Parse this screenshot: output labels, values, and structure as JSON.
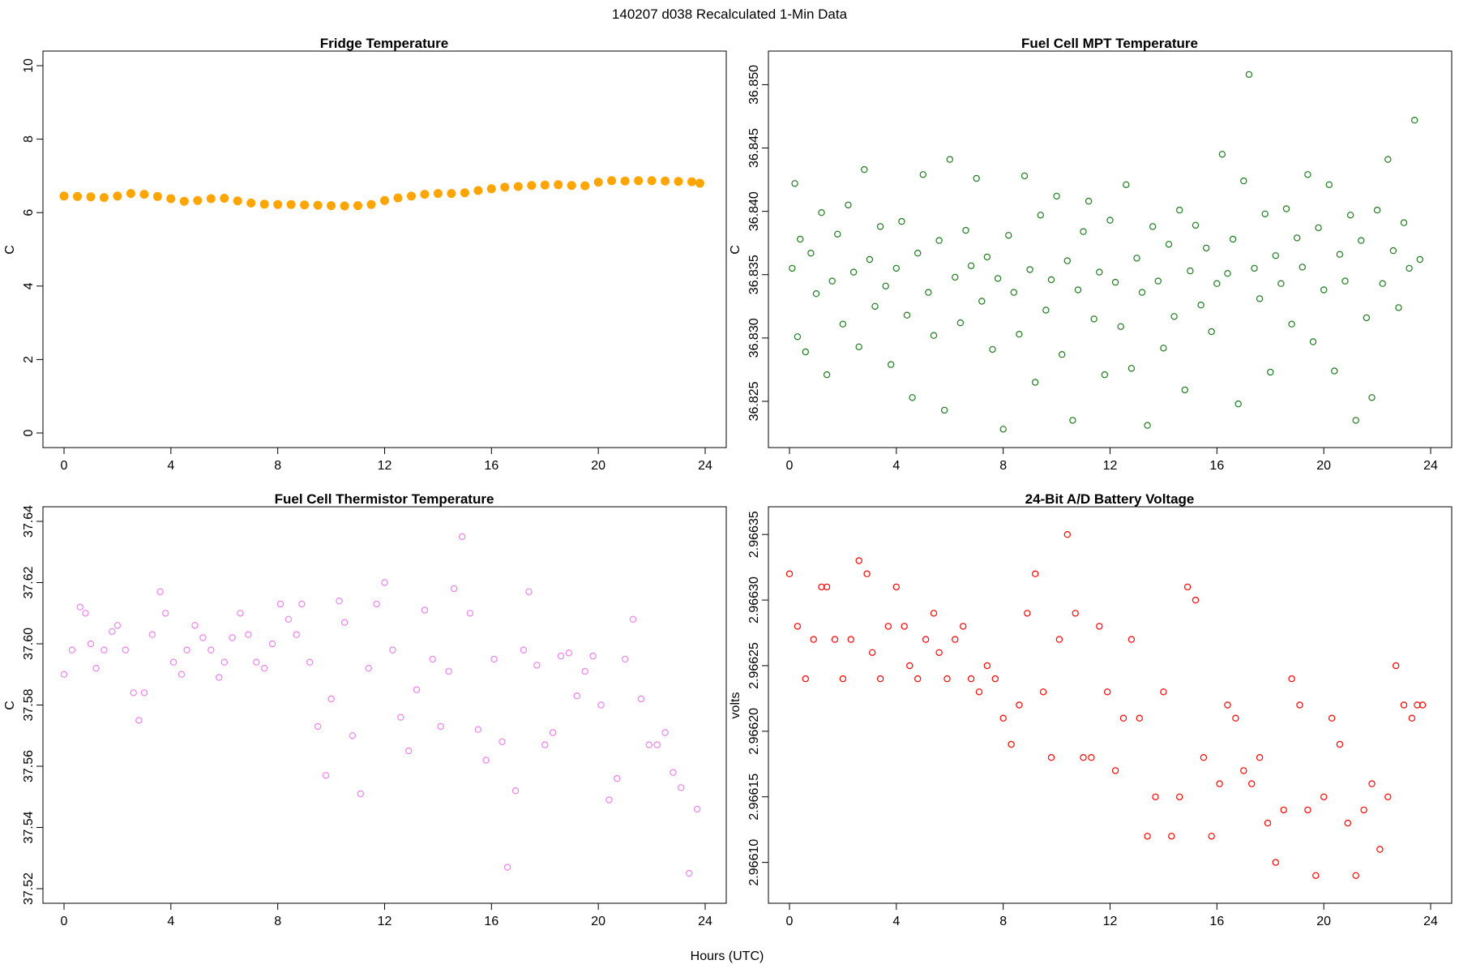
{
  "figure": {
    "title": "140207   d038   Recalculated 1-Min Data",
    "xlabel": "Hours (UTC)"
  },
  "colors": {
    "fridge": "#FFA500",
    "mpt": "#1F7A1F",
    "thermistor": "#EE82EE",
    "battery": "#FF0000"
  },
  "chart_data": [
    {
      "id": "fridge",
      "type": "scatter",
      "title": "Fridge Temperature",
      "xlabel": "",
      "ylabel": "C",
      "xlim": [
        0,
        24
      ],
      "ylim": [
        0,
        10
      ],
      "xticks": [
        0,
        4,
        8,
        12,
        16,
        20,
        24
      ],
      "yticks": [
        0,
        2,
        4,
        6,
        8,
        10
      ],
      "ytick_labels": [
        "0",
        "2",
        "4",
        "6",
        "8",
        "10"
      ],
      "color_key": "fridge",
      "filled": true,
      "x": [
        0,
        0.5,
        1,
        1.5,
        2,
        2.5,
        3,
        3.5,
        4,
        4.5,
        5,
        5.5,
        6,
        6.5,
        7,
        7.5,
        8,
        8.5,
        9,
        9.5,
        10,
        10.5,
        11,
        11.5,
        12,
        12.5,
        13,
        13.5,
        14,
        14.5,
        15,
        15.5,
        16,
        16.5,
        17,
        17.5,
        18,
        18.5,
        19,
        19.5,
        20,
        20.5,
        21,
        21.5,
        22,
        22.5,
        23,
        23.5,
        23.8
      ],
      "y": [
        6.45,
        6.44,
        6.43,
        6.41,
        6.45,
        6.52,
        6.5,
        6.44,
        6.38,
        6.31,
        6.33,
        6.38,
        6.39,
        6.32,
        6.26,
        6.23,
        6.22,
        6.22,
        6.21,
        6.2,
        6.19,
        6.18,
        6.19,
        6.22,
        6.33,
        6.4,
        6.45,
        6.5,
        6.52,
        6.52,
        6.54,
        6.6,
        6.65,
        6.69,
        6.71,
        6.74,
        6.75,
        6.76,
        6.74,
        6.73,
        6.83,
        6.87,
        6.86,
        6.87,
        6.87,
        6.86,
        6.85,
        6.84,
        6.8
      ]
    },
    {
      "id": "mpt",
      "type": "scatter",
      "title": "Fuel Cell MPT Temperature",
      "xlabel": "",
      "ylabel": "C",
      "xlim": [
        0,
        24
      ],
      "ylim": [
        36.8225,
        36.8515
      ],
      "xticks": [
        0,
        4,
        8,
        12,
        16,
        20,
        24
      ],
      "yticks": [
        36.825,
        36.83,
        36.835,
        36.84,
        36.845,
        36.85
      ],
      "ytick_labels": [
        "36.825",
        "36.830",
        "36.835",
        "36.840",
        "36.845",
        "36.850"
      ],
      "color_key": "mpt",
      "filled": false,
      "x": [
        0.1,
        0.2,
        0.3,
        0.4,
        0.6,
        0.8,
        1.0,
        1.2,
        1.4,
        1.6,
        1.8,
        2.0,
        2.2,
        2.4,
        2.6,
        2.8,
        3.0,
        3.2,
        3.4,
        3.6,
        3.8,
        4.0,
        4.2,
        4.4,
        4.6,
        4.8,
        5.0,
        5.2,
        5.4,
        5.6,
        5.8,
        6.0,
        6.2,
        6.4,
        6.6,
        6.8,
        7.0,
        7.2,
        7.4,
        7.6,
        7.8,
        8.0,
        8.2,
        8.4,
        8.6,
        8.8,
        9.0,
        9.2,
        9.4,
        9.6,
        9.8,
        10.0,
        10.2,
        10.4,
        10.6,
        10.8,
        11.0,
        11.2,
        11.4,
        11.6,
        11.8,
        12.0,
        12.2,
        12.4,
        12.6,
        12.8,
        13.0,
        13.2,
        13.4,
        13.6,
        13.8,
        14.0,
        14.2,
        14.4,
        14.6,
        14.8,
        15.0,
        15.2,
        15.4,
        15.6,
        15.8,
        16.0,
        16.2,
        16.4,
        16.6,
        16.8,
        17.0,
        17.2,
        17.4,
        17.6,
        17.8,
        18.0,
        18.2,
        18.4,
        18.6,
        18.8,
        19.0,
        19.2,
        19.4,
        19.6,
        19.8,
        20.0,
        20.2,
        20.4,
        20.6,
        20.8,
        21.0,
        21.2,
        21.4,
        21.6,
        21.8,
        22.0,
        22.2,
        22.4,
        22.6,
        22.8,
        23.0,
        23.2,
        23.4,
        23.6
      ],
      "y": [
        36.8355,
        36.8422,
        36.8301,
        36.8378,
        36.8289,
        36.8367,
        36.8335,
        36.8399,
        36.8271,
        36.8345,
        36.8382,
        36.8311,
        36.8405,
        36.8352,
        36.8293,
        36.8433,
        36.8362,
        36.8325,
        36.8388,
        36.8341,
        36.8279,
        36.8355,
        36.8392,
        36.8318,
        36.8253,
        36.8367,
        36.8429,
        36.8336,
        36.8302,
        36.8377,
        36.8243,
        36.8441,
        36.8348,
        36.8312,
        36.8385,
        36.8357,
        36.8426,
        36.8329,
        36.8364,
        36.8291,
        36.8347,
        36.8228,
        36.8381,
        36.8336,
        36.8303,
        36.8428,
        36.8354,
        36.8265,
        36.8397,
        36.8322,
        36.8346,
        36.8412,
        36.8287,
        36.8361,
        36.8235,
        36.8338,
        36.8384,
        36.8408,
        36.8315,
        36.8352,
        36.8271,
        36.8393,
        36.8344,
        36.8309,
        36.8421,
        36.8276,
        36.8363,
        36.8336,
        36.8231,
        36.8388,
        36.8345,
        36.8292,
        36.8374,
        36.8317,
        36.8401,
        36.8259,
        36.8353,
        36.8389,
        36.8326,
        36.8371,
        36.8305,
        36.8343,
        36.8445,
        36.8351,
        36.8378,
        36.8248,
        36.8424,
        36.8508,
        36.8355,
        36.8331,
        36.8398,
        36.8273,
        36.8365,
        36.8343,
        36.8402,
        36.8311,
        36.8379,
        36.8356,
        36.8429,
        36.8297,
        36.8387,
        36.8338,
        36.8421,
        36.8274,
        36.8366,
        36.8345,
        36.8397,
        36.8235,
        36.8377,
        36.8316,
        36.8253,
        36.8401,
        36.8343,
        36.8441,
        36.8369,
        36.8324,
        36.8391,
        36.8355,
        36.8472,
        36.8362
      ]
    },
    {
      "id": "thermistor",
      "type": "scatter",
      "title": "Fuel Cell Thermistor Temperature",
      "xlabel": "",
      "ylabel": "C",
      "xlim": [
        0,
        24
      ],
      "ylim": [
        37.52,
        37.64
      ],
      "xticks": [
        0,
        4,
        8,
        12,
        16,
        20,
        24
      ],
      "yticks": [
        37.52,
        37.54,
        37.56,
        37.58,
        37.6,
        37.62,
        37.64
      ],
      "ytick_labels": [
        "37.52",
        "37.54",
        "37.56",
        "37.58",
        "37.60",
        "37.62",
        "37.64"
      ],
      "color_key": "thermistor",
      "filled": false,
      "x": [
        0,
        0.3,
        0.6,
        0.8,
        1.0,
        1.2,
        1.5,
        1.8,
        2.0,
        2.3,
        2.6,
        2.8,
        3.0,
        3.3,
        3.6,
        3.8,
        4.1,
        4.4,
        4.6,
        4.9,
        5.2,
        5.5,
        5.8,
        6.0,
        6.3,
        6.6,
        6.9,
        7.2,
        7.5,
        7.8,
        8.1,
        8.4,
        8.7,
        8.9,
        9.2,
        9.5,
        9.8,
        10.0,
        10.3,
        10.5,
        10.8,
        11.1,
        11.4,
        11.7,
        12.0,
        12.3,
        12.6,
        12.9,
        13.2,
        13.5,
        13.8,
        14.1,
        14.4,
        14.6,
        14.9,
        15.2,
        15.5,
        15.8,
        16.1,
        16.4,
        16.6,
        16.9,
        17.2,
        17.4,
        17.7,
        18.0,
        18.3,
        18.6,
        18.9,
        19.2,
        19.5,
        19.8,
        20.1,
        20.4,
        20.7,
        21.0,
        21.3,
        21.6,
        21.9,
        22.2,
        22.5,
        22.8,
        23.1,
        23.4,
        23.7
      ],
      "y": [
        37.59,
        37.598,
        37.612,
        37.61,
        37.6,
        37.592,
        37.598,
        37.604,
        37.606,
        37.598,
        37.584,
        37.575,
        37.584,
        37.603,
        37.617,
        37.61,
        37.594,
        37.59,
        37.598,
        37.606,
        37.602,
        37.598,
        37.589,
        37.594,
        37.602,
        37.61,
        37.603,
        37.594,
        37.592,
        37.6,
        37.613,
        37.608,
        37.603,
        37.613,
        37.594,
        37.573,
        37.557,
        37.582,
        37.614,
        37.607,
        37.57,
        37.551,
        37.592,
        37.613,
        37.62,
        37.598,
        37.576,
        37.565,
        37.585,
        37.611,
        37.595,
        37.573,
        37.591,
        37.618,
        37.635,
        37.61,
        37.572,
        37.562,
        37.595,
        37.568,
        37.527,
        37.552,
        37.598,
        37.617,
        37.593,
        37.567,
        37.571,
        37.596,
        37.597,
        37.583,
        37.591,
        37.596,
        37.58,
        37.549,
        37.556,
        37.595,
        37.608,
        37.582,
        37.567,
        37.567,
        37.571,
        37.558,
        37.553,
        37.525,
        37.546
      ]
    },
    {
      "id": "battery",
      "type": "scatter",
      "title": "24-Bit A/D Battery Voltage",
      "xlabel": "",
      "ylabel": "volts",
      "xlim": [
        0,
        24
      ],
      "ylim": [
        2.96608,
        2.96636
      ],
      "xticks": [
        0,
        4,
        8,
        12,
        16,
        20,
        24
      ],
      "yticks": [
        2.9661,
        2.96615,
        2.9662,
        2.96625,
        2.9663,
        2.96635
      ],
      "ytick_labels": [
        "2.96610",
        "2.96615",
        "2.96620",
        "2.96625",
        "2.96630",
        "2.96635"
      ],
      "color_key": "battery",
      "filled": false,
      "x": [
        0,
        0.3,
        0.6,
        0.9,
        1.2,
        1.4,
        1.7,
        2.0,
        2.3,
        2.6,
        2.9,
        3.1,
        3.4,
        3.7,
        4.0,
        4.3,
        4.5,
        4.8,
        5.1,
        5.4,
        5.6,
        5.9,
        6.2,
        6.5,
        6.8,
        7.1,
        7.4,
        7.7,
        8.0,
        8.3,
        8.6,
        8.9,
        9.2,
        9.5,
        9.8,
        10.1,
        10.4,
        10.7,
        11.0,
        11.3,
        11.6,
        11.9,
        12.2,
        12.5,
        12.8,
        13.1,
        13.4,
        13.7,
        14.0,
        14.3,
        14.6,
        14.9,
        15.2,
        15.5,
        15.8,
        16.1,
        16.4,
        16.7,
        17.0,
        17.3,
        17.6,
        17.9,
        18.2,
        18.5,
        18.8,
        19.1,
        19.4,
        19.7,
        20.0,
        20.3,
        20.6,
        20.9,
        21.2,
        21.5,
        21.8,
        22.1,
        22.4,
        22.7,
        23.0,
        23.3,
        23.5,
        23.7
      ],
      "y": [
        2.96632,
        2.96628,
        2.96624,
        2.96627,
        2.96631,
        2.96631,
        2.96627,
        2.96624,
        2.96627,
        2.96633,
        2.96632,
        2.96626,
        2.96624,
        2.96628,
        2.96631,
        2.96628,
        2.96625,
        2.96624,
        2.96627,
        2.96629,
        2.96626,
        2.96624,
        2.96627,
        2.96628,
        2.96624,
        2.96623,
        2.96625,
        2.96624,
        2.96621,
        2.96619,
        2.96622,
        2.96629,
        2.96632,
        2.96623,
        2.96618,
        2.96627,
        2.96635,
        2.96629,
        2.96618,
        2.96618,
        2.96628,
        2.96623,
        2.96617,
        2.96621,
        2.96627,
        2.96621,
        2.96612,
        2.96615,
        2.96623,
        2.96612,
        2.96615,
        2.96631,
        2.9663,
        2.96618,
        2.96612,
        2.96616,
        2.96622,
        2.96621,
        2.96617,
        2.96616,
        2.96618,
        2.96613,
        2.9661,
        2.96614,
        2.96624,
        2.96622,
        2.96614,
        2.96609,
        2.96615,
        2.96621,
        2.96619,
        2.96613,
        2.96609,
        2.96614,
        2.96616,
        2.96611,
        2.96615,
        2.96625,
        2.96622,
        2.96621,
        2.96622,
        2.96622
      ]
    }
  ]
}
